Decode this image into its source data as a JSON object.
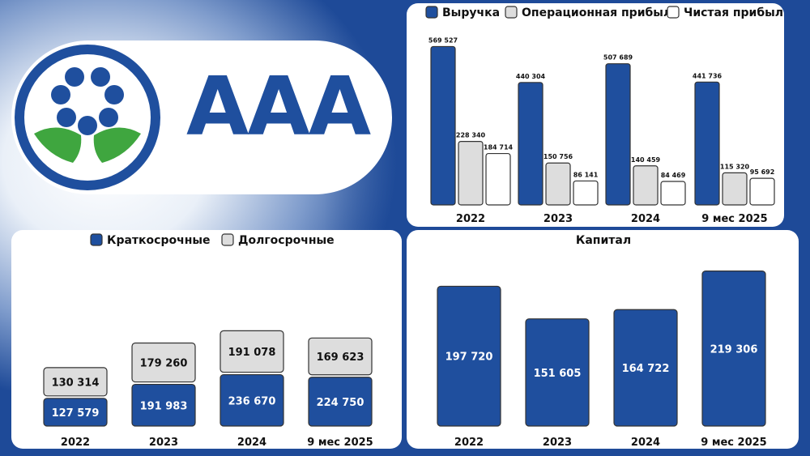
{
  "brand": {
    "logo_text": "AAA",
    "primary_color": "#1f4f9e",
    "green": "#3fa63f"
  },
  "chart_data": [
    {
      "type": "bar",
      "title": "",
      "categories": [
        "2022",
        "2023",
        "2024",
        "9 мес 2025"
      ],
      "series": [
        {
          "name": "Выручка",
          "color": "#1f4f9e",
          "values": [
            569527,
            440304,
            507689,
            441736
          ],
          "labels": [
            "569 527",
            "440 304",
            "507 689",
            "441 736"
          ]
        },
        {
          "name": "Операционная прибыль",
          "color": "#dddddd",
          "values": [
            228340,
            150756,
            140459,
            115320
          ],
          "labels": [
            "228 340",
            "150 756",
            "140 459",
            "115 320"
          ]
        },
        {
          "name": "Чистая прибыль",
          "color": "#ffffff",
          "values": [
            184714,
            86141,
            84469,
            95692
          ],
          "labels": [
            "184 714",
            "86 141",
            "84 469",
            "95 692"
          ]
        }
      ],
      "ylim": [
        0,
        600000
      ],
      "legend_position": "top"
    },
    {
      "type": "bar",
      "stacked": true,
      "title": "",
      "categories": [
        "2022",
        "2023",
        "2024",
        "9 мес 2025"
      ],
      "series": [
        {
          "name": "Краткосрочные",
          "color": "#1f4f9e",
          "values": [
            127579,
            191983,
            236670,
            224750
          ],
          "labels": [
            "127 579",
            "191 983",
            "236 670",
            "224 750"
          ]
        },
        {
          "name": "Долгосрочные",
          "color": "#dddddd",
          "values": [
            130314,
            179260,
            191078,
            169623
          ],
          "labels": [
            "130 314",
            "179 260",
            "191 078",
            "169 623"
          ]
        }
      ],
      "legend_position": "top"
    },
    {
      "type": "bar",
      "title": "Капитал",
      "categories": [
        "2022",
        "2023",
        "2024",
        "9 мес 2025"
      ],
      "series": [
        {
          "name": "Капитал",
          "color": "#1f4f9e",
          "values": [
            197720,
            151605,
            164722,
            219306
          ],
          "labels": [
            "197 720",
            "151 605",
            "164 722",
            "219 306"
          ]
        }
      ],
      "ylim": [
        0,
        220000
      ]
    }
  ]
}
